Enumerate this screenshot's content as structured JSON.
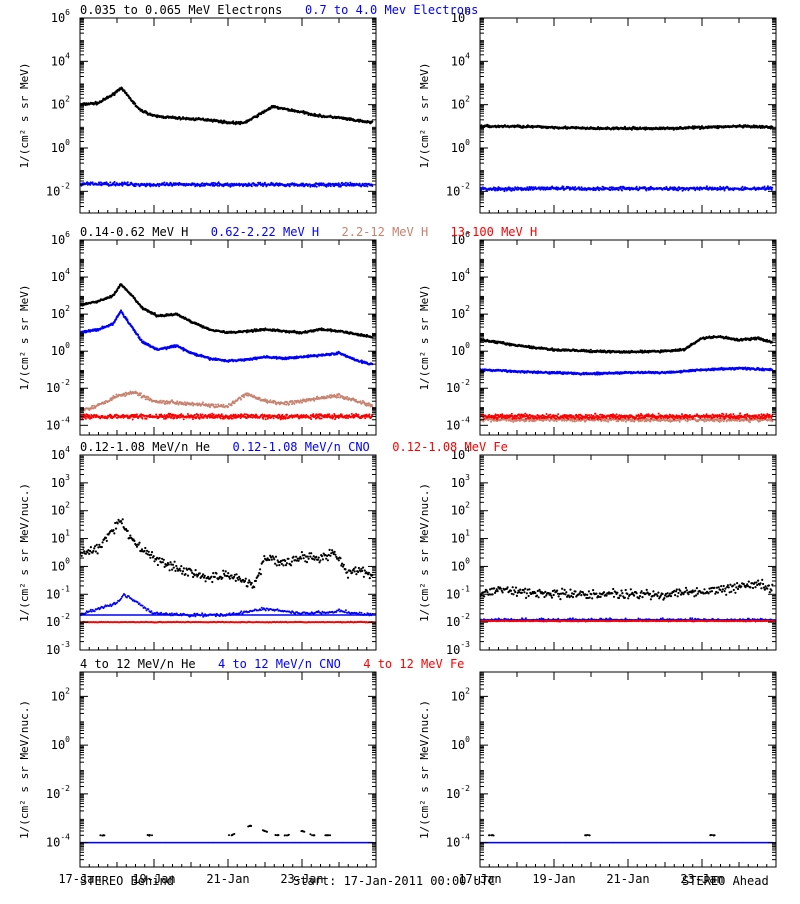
{
  "rows": [
    {
      "legend": [
        {
          "text": "0.035 to 0.065 MeV Electrons",
          "color": "#000000"
        },
        {
          "text": "0.7 to 4.0 Mev Electrons",
          "color": "#0000ff"
        }
      ],
      "ylabel": "1/(cm² s sr MeV)",
      "ticks": [
        {
          "b": "10",
          "e": "6"
        },
        {
          "b": "10",
          "e": "4"
        },
        {
          "b": "10",
          "e": "2"
        },
        {
          "b": "10",
          "e": "0"
        },
        {
          "b": "10",
          "e": "-2"
        }
      ]
    },
    {
      "legend": [
        {
          "text": "0.14-0.62 MeV H",
          "color": "#000000"
        },
        {
          "text": "0.62-2.22 MeV H",
          "color": "#0000ff"
        },
        {
          "text": "2.2-12 MeV H",
          "color": "#c8826e"
        },
        {
          "text": "13-100 MeV H",
          "color": "#ff0000"
        }
      ],
      "ylabel": "1/(cm² s sr MeV)",
      "ticks": [
        {
          "b": "10",
          "e": "6"
        },
        {
          "b": "10",
          "e": "4"
        },
        {
          "b": "10",
          "e": "2"
        },
        {
          "b": "10",
          "e": "0"
        },
        {
          "b": "10",
          "e": "-2"
        },
        {
          "b": "10",
          "e": "-4"
        }
      ]
    },
    {
      "legend": [
        {
          "text": "0.12-1.08 MeV/n He",
          "color": "#000000"
        },
        {
          "text": "0.12-1.08 MeV/n CNO",
          "color": "#0000ff"
        },
        {
          "text": "0.12-1.08 MeV Fe",
          "color": "#ff0000"
        }
      ],
      "ylabel": "1/(cm² s sr MeV/nuc.)",
      "ticks": [
        {
          "b": "10",
          "e": "4"
        },
        {
          "b": "10",
          "e": "3"
        },
        {
          "b": "10",
          "e": "2"
        },
        {
          "b": "10",
          "e": "1"
        },
        {
          "b": "10",
          "e": "0"
        },
        {
          "b": "10",
          "e": "-1"
        },
        {
          "b": "10",
          "e": "-2"
        },
        {
          "b": "10",
          "e": "-3"
        }
      ]
    },
    {
      "legend": [
        {
          "text": "4 to 12 MeV/n He",
          "color": "#000000"
        },
        {
          "text": "4 to 12 MeV/n CNO",
          "color": "#0000ff"
        },
        {
          "text": "4 to 12 MeV Fe",
          "color": "#ff0000"
        }
      ],
      "ylabel": "1/(cm² s sr MeV/nuc.)",
      "ticks": [
        {
          "b": "10",
          "e": "2"
        },
        {
          "b": "10",
          "e": "0"
        },
        {
          "b": "10",
          "e": "-2"
        },
        {
          "b": "10",
          "e": "-4"
        }
      ]
    }
  ],
  "xticks": [
    "17-Jan",
    "19-Jan",
    "21-Jan",
    "23-Jan"
  ],
  "footer": {
    "left": "STEREO Behind",
    "center": "Start: 17-Jan-2011 00:00 UTC",
    "right": "STEREO Ahead"
  },
  "chart_data": [
    {
      "type": "scatter",
      "panel": "STEREO Behind electrons",
      "x_unit": "days since 17-Jan-2011 00:00 UTC",
      "yscale": "log",
      "ylim": [
        0.001,
        1000000
      ],
      "series": [
        {
          "name": "0.035 to 0.065 MeV Electrons",
          "color": "#000000",
          "x": [
            0,
            0.5,
            0.9,
            1.1,
            1.3,
            1.6,
            2.0,
            2.5,
            3.0,
            3.5,
            4.0,
            4.4,
            4.6,
            4.9,
            5.2,
            5.6,
            6.0,
            6.5,
            7.0,
            7.5,
            7.9
          ],
          "y": [
            100,
            120,
            300,
            600,
            250,
            60,
            30,
            25,
            22,
            20,
            15,
            14,
            20,
            40,
            80,
            60,
            45,
            30,
            25,
            18,
            15
          ]
        },
        {
          "name": "0.7 to 4.0 Mev Electrons",
          "color": "#0000ff",
          "x": [
            0,
            1,
            2,
            3,
            4,
            5,
            6,
            7,
            7.9
          ],
          "y": [
            0.022,
            0.022,
            0.02,
            0.021,
            0.02,
            0.021,
            0.02,
            0.02,
            0.02
          ]
        }
      ]
    },
    {
      "type": "scatter",
      "panel": "STEREO Ahead electrons",
      "x_unit": "days since 17-Jan-2011 00:00 UTC",
      "yscale": "log",
      "ylim": [
        0.001,
        1000000
      ],
      "series": [
        {
          "name": "0.035 to 0.065 MeV Electrons",
          "color": "#000000",
          "x": [
            0,
            1,
            2,
            3,
            4,
            5,
            6,
            7,
            7.9
          ],
          "y": [
            10,
            10,
            9,
            8,
            8,
            8,
            9,
            10,
            9
          ]
        },
        {
          "name": "0.7 to 4.0 Mev Electrons",
          "color": "#0000ff",
          "x": [
            0,
            1,
            2,
            3,
            4,
            5,
            6,
            7,
            7.9
          ],
          "y": [
            0.013,
            0.013,
            0.014,
            0.013,
            0.014,
            0.013,
            0.014,
            0.013,
            0.014
          ]
        }
      ]
    },
    {
      "type": "scatter",
      "panel": "STEREO Behind protons",
      "x_unit": "days since 17-Jan-2011 00:00 UTC",
      "yscale": "log",
      "ylim": [
        3e-05,
        1000000
      ],
      "series": [
        {
          "name": "0.14-0.62 MeV H",
          "color": "#000000",
          "x": [
            0,
            0.5,
            0.9,
            1.1,
            1.4,
            1.7,
            2.1,
            2.6,
            3.0,
            3.5,
            4.0,
            4.5,
            5.0,
            5.5,
            6.0,
            6.5,
            7.0,
            7.5,
            7.9
          ],
          "y": [
            300,
            500,
            1000,
            4000,
            1000,
            200,
            80,
            100,
            40,
            15,
            10,
            12,
            15,
            12,
            10,
            15,
            12,
            8,
            6
          ]
        },
        {
          "name": "0.62-2.22 MeV H",
          "color": "#0000ff",
          "x": [
            0,
            0.5,
            0.9,
            1.1,
            1.4,
            1.7,
            2.1,
            2.6,
            3.0,
            3.5,
            4.0,
            4.5,
            5.0,
            5.5,
            6.0,
            6.5,
            7.0,
            7.5,
            7.9
          ],
          "y": [
            10,
            15,
            30,
            150,
            20,
            3,
            1.2,
            2,
            0.8,
            0.4,
            0.3,
            0.35,
            0.5,
            0.4,
            0.5,
            0.6,
            0.8,
            0.3,
            0.2
          ]
        },
        {
          "name": "2.2-12 MeV H",
          "color": "#c8826e",
          "x": [
            0,
            0.5,
            1.0,
            1.5,
            2.0,
            3.0,
            3.5,
            4.0,
            4.5,
            5.0,
            5.5,
            6.0,
            6.5,
            7.0,
            7.5,
            7.9
          ],
          "y": [
            0.0006,
            0.0012,
            0.004,
            0.006,
            0.002,
            0.0015,
            0.0012,
            0.001,
            0.005,
            0.002,
            0.0015,
            0.002,
            0.003,
            0.004,
            0.002,
            0.0012
          ]
        },
        {
          "name": "13-100 MeV H",
          "color": "#ff0000",
          "x": [
            0,
            2,
            4,
            6,
            7.9
          ],
          "y": [
            0.0003,
            0.0003,
            0.0003,
            0.0003,
            0.0003
          ]
        }
      ]
    },
    {
      "type": "scatter",
      "panel": "STEREO Ahead protons",
      "x_unit": "days since 17-Jan-2011 00:00 UTC",
      "yscale": "log",
      "ylim": [
        3e-05,
        1000000
      ],
      "series": [
        {
          "name": "0.14-0.62 MeV H",
          "color": "#000000",
          "x": [
            0,
            0.5,
            1,
            2,
            3,
            4,
            5,
            5.5,
            6,
            6.5,
            7,
            7.5,
            7.9
          ],
          "y": [
            4,
            3,
            2,
            1.2,
            1,
            0.9,
            1,
            1.2,
            5,
            6,
            4,
            5,
            3
          ]
        },
        {
          "name": "0.62-2.22 MeV H",
          "color": "#0000ff",
          "x": [
            0,
            1,
            2,
            3,
            4,
            5,
            6,
            7,
            7.9
          ],
          "y": [
            0.1,
            0.08,
            0.07,
            0.06,
            0.07,
            0.07,
            0.1,
            0.12,
            0.1
          ]
        },
        {
          "name": "2.2-12 MeV H",
          "color": "#c8826e",
          "x": [
            0,
            2,
            4,
            6,
            7.9
          ],
          "y": [
            0.0002,
            0.0002,
            0.0002,
            0.0002,
            0.0002
          ]
        },
        {
          "name": "13-100 MeV H",
          "color": "#ff0000",
          "x": [
            0,
            2,
            4,
            6,
            7.9
          ],
          "y": [
            0.0003,
            0.0003,
            0.0003,
            0.0003,
            0.0003
          ]
        }
      ]
    },
    {
      "type": "scatter",
      "panel": "STEREO Behind suprathermal ions",
      "x_unit": "days since 17-Jan-2011 00:00 UTC",
      "yscale": "log",
      "ylim": [
        0.001,
        10000
      ],
      "series": [
        {
          "name": "0.12-1.08 MeV/n He",
          "color": "#000000",
          "x": [
            0,
            0.5,
            0.9,
            1.1,
            1.3,
            1.6,
            2.0,
            2.5,
            3.0,
            3.5,
            4.0,
            4.4,
            4.7,
            5.0,
            5.5,
            6.0,
            6.5,
            6.9,
            7.2,
            7.5,
            7.9
          ],
          "y": [
            3,
            5,
            20,
            50,
            15,
            5,
            2,
            1,
            0.6,
            0.4,
            0.5,
            0.3,
            0.2,
            2,
            1.5,
            2,
            2,
            3,
            0.6,
            0.8,
            0.5
          ]
        },
        {
          "name": "0.12-1.08 MeV/n CNO",
          "color": "#0000ff",
          "x": [
            0,
            1,
            1.2,
            2,
            3,
            4,
            5,
            6,
            7,
            7.9
          ],
          "y": [
            0.018,
            0.05,
            0.1,
            0.02,
            0.018,
            0.018,
            0.03,
            0.02,
            0.025,
            0.018
          ]
        },
        {
          "name": "0.12-1.08 MeV Fe",
          "color": "#ff0000",
          "x": [
            0,
            2,
            4,
            6,
            7.9
          ],
          "y": [
            0.01,
            0.01,
            0.01,
            0.01,
            0.01
          ]
        }
      ]
    },
    {
      "type": "scatter",
      "panel": "STEREO Ahead suprathermal ions",
      "x_unit": "days since 17-Jan-2011 00:00 UTC",
      "yscale": "log",
      "ylim": [
        0.001,
        10000
      ],
      "series": [
        {
          "name": "0.12-1.08 MeV/n He",
          "color": "#000000",
          "x": [
            0,
            0.5,
            1,
            2,
            3,
            4,
            5,
            6,
            6.5,
            7,
            7.5,
            7.9
          ],
          "y": [
            0.1,
            0.15,
            0.12,
            0.1,
            0.1,
            0.1,
            0.1,
            0.12,
            0.15,
            0.2,
            0.25,
            0.15
          ]
        },
        {
          "name": "0.12-1.08 MeV/n CNO",
          "color": "#0000ff",
          "x": [
            0,
            2,
            4,
            6,
            7.9
          ],
          "y": [
            0.012,
            0.012,
            0.012,
            0.012,
            0.012
          ]
        },
        {
          "name": "0.12-1.08 MeV Fe",
          "color": "#ff0000",
          "x": [
            0,
            2,
            4,
            6,
            7.9
          ],
          "y": [
            0.011,
            0.011,
            0.011,
            0.011,
            0.011
          ]
        }
      ]
    },
    {
      "type": "scatter",
      "panel": "STEREO Behind high-energy ions",
      "x_unit": "days since 17-Jan-2011 00:00 UTC",
      "yscale": "log",
      "ylim": [
        1e-05,
        1000
      ],
      "series": [
        {
          "name": "4 to 12 MeV/n He",
          "color": "#000000",
          "x": [
            0.6,
            1.9,
            4.1,
            4.6,
            5.0,
            5.3,
            5.6,
            6.0,
            6.3,
            6.7
          ],
          "y": [
            0.0002,
            0.0002,
            0.0002,
            0.0005,
            0.0003,
            0.0002,
            0.0002,
            0.0003,
            0.0002,
            0.0002
          ]
        },
        {
          "name": "4 to 12 MeV/n CNO",
          "color": "#0000ff",
          "x": [
            0,
            2,
            4,
            6,
            7.9
          ],
          "y": [
            0.0001,
            0.0001,
            0.0001,
            0.0001,
            0.0001
          ]
        },
        {
          "name": "4 to 12 MeV Fe",
          "color": "#ff0000",
          "x": [],
          "y": []
        }
      ]
    },
    {
      "type": "scatter",
      "panel": "STEREO Ahead high-energy ions",
      "x_unit": "days since 17-Jan-2011 00:00 UTC",
      "yscale": "log",
      "ylim": [
        1e-05,
        1000
      ],
      "series": [
        {
          "name": "4 to 12 MeV/n He",
          "color": "#000000",
          "x": [
            0.3,
            2.9,
            6.3
          ],
          "y": [
            0.0002,
            0.0002,
            0.0002
          ]
        },
        {
          "name": "4 to 12 MeV/n CNO",
          "color": "#0000ff",
          "x": [
            0,
            2,
            4,
            6,
            7.9
          ],
          "y": [
            0.0001,
            0.0001,
            0.0001,
            0.0001,
            0.0001
          ]
        },
        {
          "name": "4 to 12 MeV Fe",
          "color": "#ff0000",
          "x": [],
          "y": []
        }
      ]
    }
  ]
}
